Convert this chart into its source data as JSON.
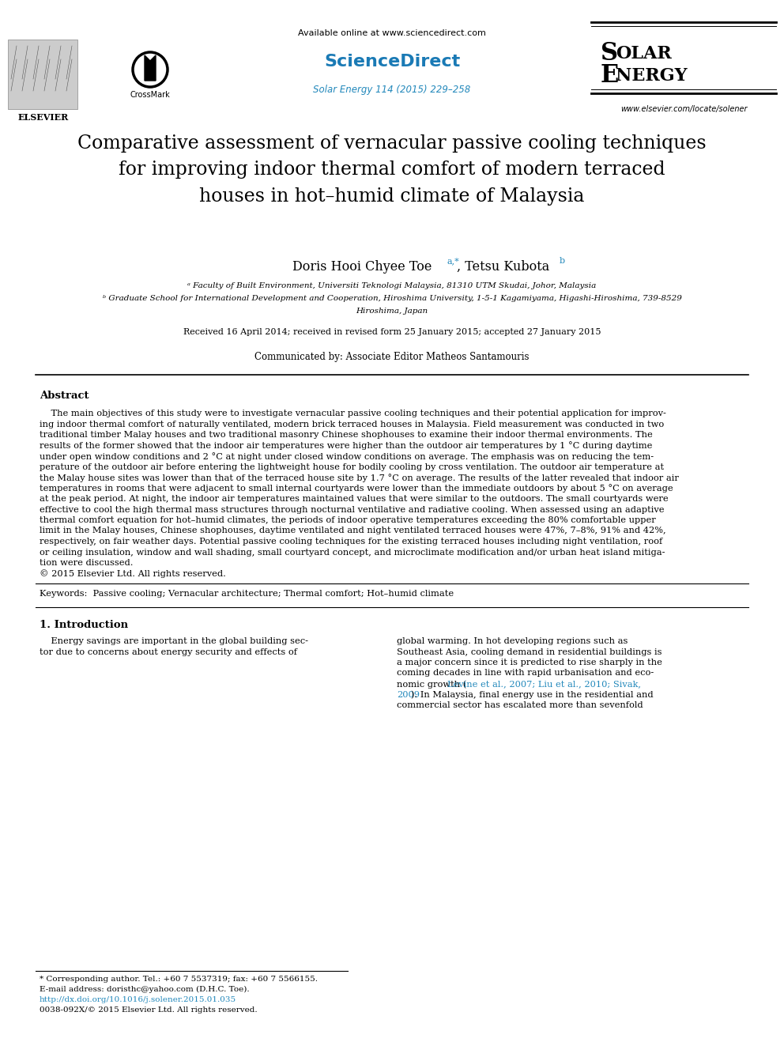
{
  "bg_color": "#ffffff",
  "header": {
    "available_text": "Available online at www.sciencedirect.com",
    "sciencedirect_text": "ScienceDirect",
    "journal_ref": "Solar Energy 114 (2015) 229–258",
    "website": "www.elsevier.com/locate/solener",
    "elsevier_text": "ELSEVIER",
    "crossmark_text": "CrossMark"
  },
  "title": "Comparative assessment of vernacular passive cooling techniques\nfor improving indoor thermal comfort of modern terraced\nhouses in hot–humid climate of Malaysia",
  "affiliation_a": "ᵃ Faculty of Built Environment, Universiti Teknologi Malaysia, 81310 UTM Skudai, Johor, Malaysia",
  "affiliation_b": "ᵇ Graduate School for International Development and Cooperation, Hiroshima University, 1-5-1 Kagamiyama, Higashi-Hiroshima, 739-8529",
  "affiliation_b2": "Hiroshima, Japan",
  "received_text": "Received 16 April 2014; received in revised form 25 January 2015; accepted 27 January 2015",
  "communicated_text": "Communicated by: Associate Editor Matheos Santamouris",
  "abstract_title": "Abstract",
  "abstract_lines": [
    "    The main objectives of this study were to investigate vernacular passive cooling techniques and their potential application for improv-",
    "ing indoor thermal comfort of naturally ventilated, modern brick terraced houses in Malaysia. Field measurement was conducted in two",
    "traditional timber Malay houses and two traditional masonry Chinese shophouses to examine their indoor thermal environments. The",
    "results of the former showed that the indoor air temperatures were higher than the outdoor air temperatures by 1 °C during daytime",
    "under open window conditions and 2 °C at night under closed window conditions on average. The emphasis was on reducing the tem-",
    "perature of the outdoor air before entering the lightweight house for bodily cooling by cross ventilation. The outdoor air temperature at",
    "the Malay house sites was lower than that of the terraced house site by 1.7 °C on average. The results of the latter revealed that indoor air",
    "temperatures in rooms that were adjacent to small internal courtyards were lower than the immediate outdoors by about 5 °C on average",
    "at the peak period. At night, the indoor air temperatures maintained values that were similar to the outdoors. The small courtyards were",
    "effective to cool the high thermal mass structures through nocturnal ventilative and radiative cooling. When assessed using an adaptive",
    "thermal comfort equation for hot–humid climates, the periods of indoor operative temperatures exceeding the 80% comfortable upper",
    "limit in the Malay houses, Chinese shophouses, daytime ventilated and night ventilated terraced houses were 47%, 7–8%, 91% and 42%,",
    "respectively, on fair weather days. Potential passive cooling techniques for the existing terraced houses including night ventilation, roof",
    "or ceiling insulation, window and wall shading, small courtyard concept, and microclimate modification and/or urban heat island mitiga-",
    "tion were discussed.",
    "© 2015 Elsevier Ltd. All rights reserved."
  ],
  "keywords_text": "Keywords:  Passive cooling; Vernacular architecture; Thermal comfort; Hot–humid climate",
  "intro_title": "1. Introduction",
  "intro_col1_lines": [
    "    Energy savings are important in the global building sec-",
    "tor due to concerns about energy security and effects of"
  ],
  "intro_col2_lines": [
    "global warming. In hot developing regions such as",
    "Southeast Asia, cooling demand in residential buildings is",
    "a major concern since it is predicted to rise sharply in the",
    "coming decades in line with rapid urbanisation and eco-",
    "nomic growth (Levine et al., 2007; Liu et al., 2010; Sivak,",
    "2009). In Malaysia, final energy use in the residential and",
    "commercial sector has escalated more than sevenfold"
  ],
  "footnote1": "* Corresponding author. Tel.: +60 7 5537319; fax: +60 7 5566155.",
  "footnote2": "E-mail address: doristhc@yahoo.com (D.H.C. Toe).",
  "footnote3": "http://dx.doi.org/10.1016/j.solener.2015.01.035",
  "footnote4": "0038-092X/© 2015 Elsevier Ltd. All rights reserved."
}
